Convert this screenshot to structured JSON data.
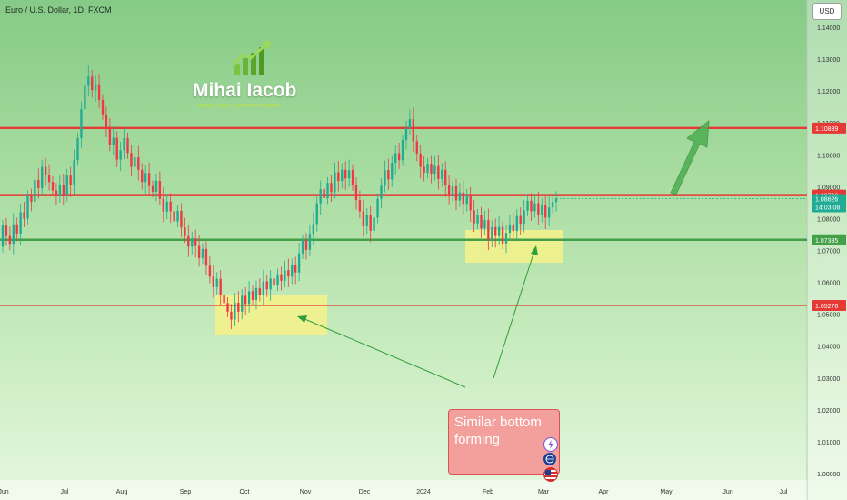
{
  "chart_title": "Euro / U.S. Dollar, 1D, FXCM",
  "currency_button": "USD",
  "logo": {
    "name": "Mihai Iacob",
    "tagline": "FOREX, GOLD & CRYPTO TRADER"
  },
  "note": {
    "text": "Similar bottom forming"
  },
  "colors": {
    "up": "#22ab94",
    "down": "#f23645",
    "resistance_line": "#e53935",
    "support_line": "#43a047",
    "arrow": "#4caf50",
    "zone": "#f6f28a"
  },
  "icons": [
    "lightning-icon",
    "globe-icon",
    "us-flag-icon"
  ],
  "chart_data": {
    "type": "candlestick",
    "title": "Euro / U.S. Dollar, 1D, FXCM",
    "ylim": [
      0.9985,
      1.1455
    ],
    "y_ticks": [
      "1.14000",
      "1.13000",
      "1.12000",
      "1.11000",
      "1.10000",
      "1.09000",
      "1.08000",
      "1.07000",
      "1.06000",
      "1.05000",
      "1.04000",
      "1.03000",
      "1.02000",
      "1.01000",
      "1.00000"
    ],
    "x_ticks": [
      "Jun",
      "Jul",
      "Aug",
      "Sep",
      "Oct",
      "Nov",
      "Dec",
      "2024",
      "Feb",
      "Mar",
      "Apr",
      "May",
      "Jun",
      "Jul"
    ],
    "horizontal_levels": [
      {
        "value": 1.10839,
        "label": "1.10839",
        "color": "#e53935"
      },
      {
        "value": 1.08736,
        "label": "1.08736",
        "color": "#e53935"
      },
      {
        "value": 1.07335,
        "label": "1.07335",
        "color": "#43a047"
      },
      {
        "value": 1.05276,
        "label": "1.05276",
        "color": "#e53935"
      }
    ],
    "current_price": {
      "value": 1.08626,
      "label": "1.08626",
      "countdown": "14:03:08"
    },
    "candles": [
      [
        1.0712,
        1.0778
      ],
      [
        1.0778,
        1.0745
      ],
      [
        1.0745,
        1.0721
      ],
      [
        1.0721,
        1.0782
      ],
      [
        1.0782,
        1.0753
      ],
      [
        1.0753,
        1.082
      ],
      [
        1.082,
        1.08
      ],
      [
        1.08,
        1.087
      ],
      [
        1.087,
        1.0853
      ],
      [
        1.0853,
        1.0921
      ],
      [
        1.0921,
        1.0895
      ],
      [
        1.0895,
        1.0962
      ],
      [
        1.0962,
        1.0938
      ],
      [
        1.0938,
        1.0915
      ],
      [
        1.0915,
        1.0888
      ],
      [
        1.0888,
        1.0871
      ],
      [
        1.0871,
        1.0905
      ],
      [
        1.0905,
        1.0877
      ],
      [
        1.0877,
        1.0935
      ],
      [
        1.0935,
        1.0904
      ],
      [
        1.0904,
        1.0983
      ],
      [
        1.0983,
        1.1052
      ],
      [
        1.1052,
        1.1143
      ],
      [
        1.1143,
        1.1216
      ],
      [
        1.1216,
        1.1245
      ],
      [
        1.1245,
        1.1203
      ],
      [
        1.1203,
        1.1221
      ],
      [
        1.1221,
        1.1172
      ],
      [
        1.1172,
        1.1127
      ],
      [
        1.1127,
        1.1085
      ],
      [
        1.1085,
        1.1032
      ],
      [
        1.1032,
        1.1053
      ],
      [
        1.1053,
        1.0985
      ],
      [
        1.0985,
        1.1014
      ],
      [
        1.1014,
        1.1052
      ],
      [
        1.1052,
        1.1006
      ],
      [
        1.1006,
        1.0962
      ],
      [
        1.0962,
        1.0992
      ],
      [
        1.0992,
        1.0953
      ],
      [
        1.0953,
        1.0915
      ],
      [
        1.0915,
        1.0943
      ],
      [
        1.0943,
        1.0902
      ],
      [
        1.0902,
        1.0884
      ],
      [
        1.0884,
        1.0918
      ],
      [
        1.0918,
        1.0862
      ],
      [
        1.0862,
        1.0822
      ],
      [
        1.0822,
        1.0853
      ],
      [
        1.0853,
        1.0823
      ],
      [
        1.0823,
        1.0791
      ],
      [
        1.0791,
        1.0824
      ],
      [
        1.0824,
        1.0772
      ],
      [
        1.0772,
        1.0745
      ],
      [
        1.0745,
        1.0712
      ],
      [
        1.0712,
        1.0738
      ],
      [
        1.0738,
        1.0714
      ],
      [
        1.0714,
        1.0676
      ],
      [
        1.0676,
        1.0705
      ],
      [
        1.0705,
        1.0652
      ],
      [
        1.0652,
        1.0618
      ],
      [
        1.0618,
        1.0585
      ],
      [
        1.0585,
        1.0611
      ],
      [
        1.0611,
        1.0562
      ],
      [
        1.0562,
        1.0535
      ],
      [
        1.0535,
        1.0508
      ],
      [
        1.0508,
        1.0483
      ],
      [
        1.0483,
        1.0536
      ],
      [
        1.0536,
        1.0508
      ],
      [
        1.0508,
        1.0558
      ],
      [
        1.0558,
        1.0532
      ],
      [
        1.0532,
        1.0572
      ],
      [
        1.0572,
        1.0545
      ],
      [
        1.0545,
        1.0582
      ],
      [
        1.0582,
        1.0561
      ],
      [
        1.0561,
        1.0603
      ],
      [
        1.0603,
        1.0578
      ],
      [
        1.0578,
        1.0612
      ],
      [
        1.0612,
        1.0591
      ],
      [
        1.0591,
        1.0625
      ],
      [
        1.0625,
        1.0605
      ],
      [
        1.0605,
        1.0638
      ],
      [
        1.0638,
        1.0618
      ],
      [
        1.0618,
        1.0653
      ],
      [
        1.0653,
        1.0631
      ],
      [
        1.0631,
        1.0691
      ],
      [
        1.0691,
        1.0731
      ],
      [
        1.0731,
        1.0702
      ],
      [
        1.0702,
        1.0752
      ],
      [
        1.0752,
        1.0783
      ],
      [
        1.0783,
        1.0848
      ],
      [
        1.0848,
        1.0892
      ],
      [
        1.0892,
        1.0864
      ],
      [
        1.0864,
        1.0912
      ],
      [
        1.0912,
        1.0883
      ],
      [
        1.0883,
        1.0945
      ],
      [
        1.0945,
        1.0918
      ],
      [
        1.0918,
        1.0953
      ],
      [
        1.0953,
        1.0926
      ],
      [
        1.0926,
        1.0952
      ],
      [
        1.0952,
        1.0905
      ],
      [
        1.0905,
        1.0858
      ],
      [
        1.0858,
        1.0823
      ],
      [
        1.0823,
        1.0776
      ],
      [
        1.0776,
        1.0812
      ],
      [
        1.0812,
        1.0762
      ],
      [
        1.0762,
        1.0803
      ],
      [
        1.0803,
        1.0862
      ],
      [
        1.0862,
        1.0903
      ],
      [
        1.0903,
        1.0952
      ],
      [
        1.0952,
        1.0923
      ],
      [
        1.0923,
        1.0975
      ],
      [
        1.0975,
        1.1005
      ],
      [
        1.1005,
        1.0983
      ],
      [
        1.0983,
        1.1046
      ],
      [
        1.1046,
        1.1083
      ],
      [
        1.1083,
        1.1112
      ],
      [
        1.1112,
        1.1042
      ],
      [
        1.1042,
        1.1004
      ],
      [
        1.1004,
        1.0962
      ],
      [
        1.0962,
        1.0944
      ],
      [
        1.0944,
        1.0972
      ],
      [
        1.0972,
        1.0941
      ],
      [
        1.0941,
        1.0965
      ],
      [
        1.0965,
        1.0924
      ],
      [
        1.0924,
        1.0953
      ],
      [
        1.0953,
        1.0904
      ],
      [
        1.0904,
        1.0872
      ],
      [
        1.0872,
        1.0901
      ],
      [
        1.0901,
        1.0857
      ],
      [
        1.0857,
        1.0882
      ],
      [
        1.0882,
        1.0846
      ],
      [
        1.0846,
        1.0872
      ],
      [
        1.0872,
        1.0826
      ],
      [
        1.0826,
        1.0785
      ],
      [
        1.0785,
        1.0812
      ],
      [
        1.0812,
        1.0769
      ],
      [
        1.0769,
        1.0795
      ],
      [
        1.0795,
        1.0734
      ],
      [
        1.0734,
        1.0773
      ],
      [
        1.0773,
        1.0745
      ],
      [
        1.0745,
        1.0774
      ],
      [
        1.0774,
        1.0722
      ],
      [
        1.0722,
        1.0755
      ],
      [
        1.0755,
        1.0782
      ],
      [
        1.0782,
        1.0761
      ],
      [
        1.0761,
        1.0808
      ],
      [
        1.0808,
        1.0784
      ],
      [
        1.0784,
        1.0825
      ],
      [
        1.0825,
        1.0856
      ],
      [
        1.0856,
        1.0823
      ],
      [
        1.0823,
        1.0848
      ],
      [
        1.0848,
        1.0812
      ],
      [
        1.0812,
        1.0843
      ],
      [
        1.0843,
        1.0803
      ],
      [
        1.0803,
        1.0835
      ],
      [
        1.0835,
        1.0852
      ],
      [
        1.0852,
        1.0862
      ]
    ]
  }
}
